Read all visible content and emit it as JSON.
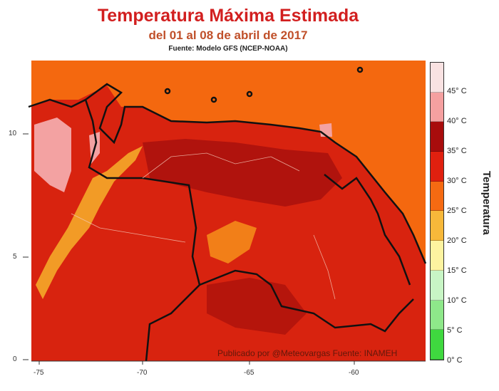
{
  "title": "Temperatura Máxima Estimada",
  "subtitle": "del 01 al 08 de abril de 2017",
  "source": "Fuente: Modelo GFS (NCEP-NOAA)",
  "credit": "Publicado por @Meteovargas Fuente: INAMEH",
  "map": {
    "x_ticks": [
      "-75",
      "-70",
      "-65",
      "-60"
    ],
    "y_ticks": [
      "10",
      "5",
      "0"
    ],
    "colors": {
      "ocean": "#f4680f",
      "land": "#d8230f",
      "hot": "#a60f0c",
      "pink": "#f3a2a2",
      "cool": "#f7b02a"
    }
  },
  "legend": {
    "title": "Temperatura",
    "labels": [
      "45° C",
      "40° C",
      "35° C",
      "30° C",
      "25° C",
      "20° C",
      "15° C",
      "10° C",
      "5° C",
      "0° C"
    ],
    "colors": [
      "#f9e2e2",
      "#f5a0a0",
      "#a80c0c",
      "#e0200f",
      "#f56a12",
      "#f7b83a",
      "#fdf3a0",
      "#c8f5c5",
      "#8ee88a",
      "#3fd83f"
    ]
  }
}
